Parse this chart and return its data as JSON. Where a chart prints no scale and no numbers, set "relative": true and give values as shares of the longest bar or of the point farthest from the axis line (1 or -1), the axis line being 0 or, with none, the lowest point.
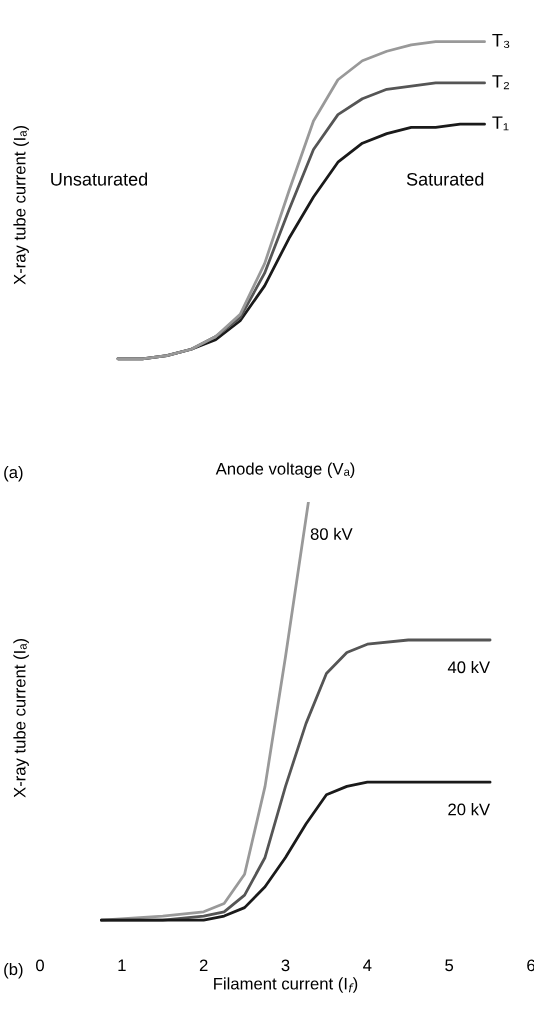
{
  "chart_data": [
    {
      "type": "line",
      "relative": true,
      "xlabel": "Anode voltage (Vₐ)",
      "ylabel": "X-ray tube current (Iₐ)",
      "tick_labels": false,
      "grid": false,
      "legend": false,
      "line_style": "solid",
      "marker": "none",
      "categories": [
        null,
        null,
        null,
        null,
        null,
        null,
        null,
        null,
        null,
        null,
        null,
        null,
        null,
        null,
        null,
        null
      ],
      "series": [
        {
          "name": "T₁",
          "color": "#1a1a1a",
          "values": [
            0,
            0.0,
            0.01,
            0.03,
            0.06,
            0.12,
            0.23,
            0.38,
            0.51,
            0.62,
            0.68,
            0.71,
            0.73,
            0.73,
            0.74,
            0.74
          ]
        },
        {
          "name": "T₂",
          "color": "#555555",
          "values": [
            0,
            0.0,
            0.01,
            0.03,
            0.07,
            0.13,
            0.27,
            0.47,
            0.66,
            0.77,
            0.82,
            0.85,
            0.86,
            0.87,
            0.87,
            0.87
          ]
        },
        {
          "name": "T₃",
          "color": "#999999",
          "values": [
            0,
            0.0,
            0.01,
            0.03,
            0.07,
            0.14,
            0.3,
            0.53,
            0.75,
            0.88,
            0.94,
            0.97,
            0.99,
            1.0,
            1.0,
            1.0
          ]
        }
      ],
      "annotations": [
        "(a)",
        "Unsaturated",
        "Saturated"
      ]
    },
    {
      "type": "line",
      "relative": true,
      "xlabel": "Filament current (I$_{f}$)",
      "ylabel": "X-ray tube current (Iₐ)",
      "tick_labels": "x",
      "grid": false,
      "legend": false,
      "line_style": "solid",
      "marker": "none",
      "xlim": [
        0,
        6
      ],
      "xticks": [
        0,
        1,
        2,
        3,
        4,
        5,
        6
      ],
      "series": [
        {
          "name": "80 kV",
          "color": "#999999",
          "x": [
            0.75,
            1.5,
            2.0,
            2.25,
            2.5,
            2.75,
            3.0,
            3.28
          ],
          "values": [
            0,
            0.01,
            0.02,
            0.04,
            0.11,
            0.32,
            0.63,
            1.0
          ]
        },
        {
          "name": "40 kV",
          "color": "#555555",
          "x": [
            0.75,
            1.5,
            2.0,
            2.25,
            2.5,
            2.75,
            3.0,
            3.25,
            3.5,
            3.75,
            4.0,
            4.5,
            5.0,
            5.5
          ],
          "values": [
            0,
            0.0,
            0.01,
            0.02,
            0.06,
            0.15,
            0.32,
            0.47,
            0.59,
            0.64,
            0.66,
            0.67,
            0.67,
            0.67
          ]
        },
        {
          "name": "20 kV",
          "color": "#1a1a1a",
          "x": [
            0.75,
            1.5,
            2.0,
            2.25,
            2.5,
            2.75,
            3.0,
            3.25,
            3.5,
            3.75,
            4.0,
            4.5,
            5.0,
            5.5
          ],
          "values": [
            0,
            0.0,
            0.0,
            0.01,
            0.03,
            0.08,
            0.15,
            0.23,
            0.3,
            0.32,
            0.33,
            0.33,
            0.33,
            0.33
          ]
        }
      ],
      "annotations": [
        "(b)"
      ]
    }
  ]
}
